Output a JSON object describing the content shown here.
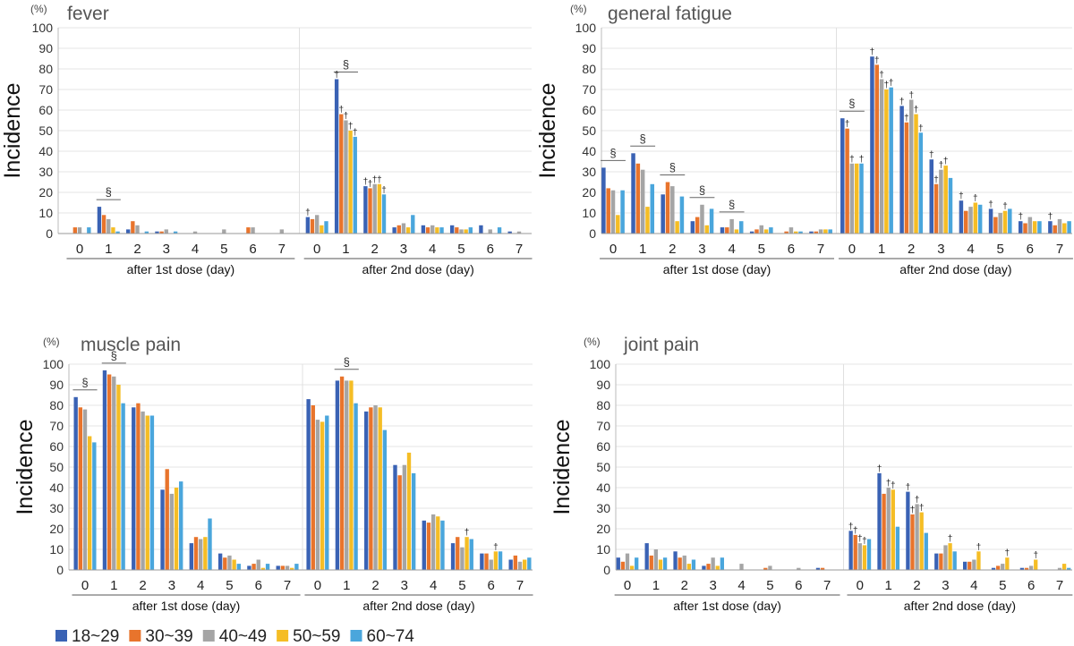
{
  "chart_data": [
    {
      "type": "bar",
      "title": "fever",
      "ylabel": "Incidence",
      "yunit": "(%)",
      "ylim": [
        0,
        100
      ],
      "ytick_step": 10,
      "grid": true,
      "groups": [
        {
          "label": "after 1st dose (day)",
          "days": [
            "0",
            "1",
            "2",
            "3",
            "4",
            "5",
            "6",
            "7"
          ]
        },
        {
          "label": "after 2nd dose (day)",
          "days": [
            "0",
            "1",
            "2",
            "3",
            "4",
            "5",
            "6",
            "7"
          ]
        }
      ],
      "series": [
        {
          "name": "18~29",
          "values": [
            0,
            13,
            2,
            1,
            0,
            0,
            0,
            0,
            8,
            75,
            23,
            3,
            4,
            4,
            4,
            1
          ]
        },
        {
          "name": "30~39",
          "values": [
            3,
            9,
            6,
            1,
            0,
            0,
            3,
            0,
            7,
            58,
            22,
            4,
            3,
            3,
            0,
            0
          ]
        },
        {
          "name": "40~49",
          "values": [
            3,
            7,
            4,
            2,
            1,
            2,
            3,
            2,
            9,
            55,
            24,
            5,
            4,
            2,
            2,
            1
          ]
        },
        {
          "name": "50~59",
          "values": [
            0,
            3,
            0,
            0,
            0,
            0,
            0,
            0,
            4,
            50,
            24,
            3,
            3,
            2,
            0,
            0
          ]
        },
        {
          "name": "60~74",
          "values": [
            3,
            1,
            1,
            1,
            0,
            0,
            0,
            0,
            6,
            47,
            19,
            9,
            3,
            3,
            3,
            0
          ]
        }
      ],
      "annotations": [
        {
          "symbol": "§",
          "day_index": 1
        },
        {
          "symbol": "§",
          "day_index": 9
        },
        {
          "symbol": "†",
          "day_index": 8,
          "series_index": 0
        },
        {
          "symbol": "†",
          "day_index": 9,
          "series_index": 0
        },
        {
          "symbol": "†",
          "day_index": 9,
          "series_index": 1
        },
        {
          "symbol": "†",
          "day_index": 9,
          "series_index": 2
        },
        {
          "symbol": "†",
          "day_index": 9,
          "series_index": 3
        },
        {
          "symbol": "†",
          "day_index": 9,
          "series_index": 4
        },
        {
          "symbol": "†",
          "day_index": 10,
          "series_index": 0
        },
        {
          "symbol": "†",
          "day_index": 10,
          "series_index": 1
        },
        {
          "symbol": "†",
          "day_index": 10,
          "series_index": 2
        },
        {
          "symbol": "†",
          "day_index": 10,
          "series_index": 3
        },
        {
          "symbol": "†",
          "day_index": 10,
          "series_index": 4
        }
      ]
    },
    {
      "type": "bar",
      "title": "general fatigue",
      "ylabel": "Incidence",
      "yunit": "(%)",
      "ylim": [
        0,
        100
      ],
      "ytick_step": 10,
      "grid": true,
      "groups": [
        {
          "label": "after 1st dose (day)",
          "days": [
            "0",
            "1",
            "2",
            "3",
            "4",
            "5",
            "6",
            "7"
          ]
        },
        {
          "label": "after 2nd dose (day)",
          "days": [
            "0",
            "1",
            "2",
            "3",
            "4",
            "5",
            "6",
            "7"
          ]
        }
      ],
      "series": [
        {
          "name": "18~29",
          "values": [
            32,
            39,
            19,
            6,
            3,
            1,
            0,
            1,
            56,
            86,
            62,
            36,
            16,
            12,
            6,
            6
          ]
        },
        {
          "name": "30~39",
          "values": [
            22,
            34,
            25,
            8,
            3,
            2,
            1,
            1,
            51,
            82,
            54,
            24,
            11,
            8,
            5,
            4
          ]
        },
        {
          "name": "40~49",
          "values": [
            21,
            31,
            23,
            14,
            7,
            4,
            3,
            2,
            34,
            75,
            65,
            31,
            13,
            10,
            8,
            7
          ]
        },
        {
          "name": "50~59",
          "values": [
            9,
            13,
            6,
            4,
            2,
            2,
            1,
            2,
            34,
            70,
            58,
            33,
            15,
            11,
            6,
            5
          ]
        },
        {
          "name": "60~74",
          "values": [
            21,
            24,
            18,
            12,
            6,
            3,
            1,
            2,
            34,
            71,
            49,
            27,
            14,
            12,
            6,
            6
          ]
        }
      ],
      "annotations": [
        {
          "symbol": "§",
          "day_index": 0
        },
        {
          "symbol": "§",
          "day_index": 1
        },
        {
          "symbol": "§",
          "day_index": 2
        },
        {
          "symbol": "§",
          "day_index": 3
        },
        {
          "symbol": "§",
          "day_index": 4
        },
        {
          "symbol": "§",
          "day_index": 8
        },
        {
          "symbol": "†",
          "day_index": 8,
          "series_index": 1
        },
        {
          "symbol": "†",
          "day_index": 8,
          "series_index": 2
        },
        {
          "symbol": "†",
          "day_index": 8,
          "series_index": 4
        },
        {
          "symbol": "†",
          "day_index": 9,
          "series_index": 0
        },
        {
          "symbol": "†",
          "day_index": 9,
          "series_index": 1
        },
        {
          "symbol": "†",
          "day_index": 9,
          "series_index": 2
        },
        {
          "symbol": "†",
          "day_index": 9,
          "series_index": 3
        },
        {
          "symbol": "†",
          "day_index": 9,
          "series_index": 4
        },
        {
          "symbol": "†",
          "day_index": 10,
          "series_index": 0
        },
        {
          "symbol": "†",
          "day_index": 10,
          "series_index": 1
        },
        {
          "symbol": "†",
          "day_index": 10,
          "series_index": 2
        },
        {
          "symbol": "†",
          "day_index": 10,
          "series_index": 3
        },
        {
          "symbol": "†",
          "day_index": 10,
          "series_index": 4
        },
        {
          "symbol": "†",
          "day_index": 11,
          "series_index": 0
        },
        {
          "symbol": "†",
          "day_index": 11,
          "series_index": 1
        },
        {
          "symbol": "†",
          "day_index": 11,
          "series_index": 2
        },
        {
          "symbol": "†",
          "day_index": 11,
          "series_index": 3
        },
        {
          "symbol": "†",
          "day_index": 12,
          "series_index": 0
        },
        {
          "symbol": "†",
          "day_index": 12,
          "series_index": 3
        },
        {
          "symbol": "†",
          "day_index": 13,
          "series_index": 0
        },
        {
          "symbol": "†",
          "day_index": 13,
          "series_index": 3
        },
        {
          "symbol": "†",
          "day_index": 14,
          "series_index": 0
        },
        {
          "symbol": "†",
          "day_index": 15,
          "series_index": 0
        }
      ]
    },
    {
      "type": "bar",
      "title": "muscle pain",
      "ylabel": "Incidence",
      "yunit": "(%)",
      "ylim": [
        0,
        100
      ],
      "ytick_step": 10,
      "grid": true,
      "groups": [
        {
          "label": "after 1st dose (day)",
          "days": [
            "0",
            "1",
            "2",
            "3",
            "4",
            "5",
            "6",
            "7"
          ]
        },
        {
          "label": "after 2nd dose (day)",
          "days": [
            "0",
            "1",
            "2",
            "3",
            "4",
            "5",
            "6",
            "7"
          ]
        }
      ],
      "series": [
        {
          "name": "18~29",
          "values": [
            84,
            97,
            79,
            39,
            13,
            8,
            2,
            2,
            83,
            92,
            77,
            51,
            24,
            13,
            8,
            5
          ]
        },
        {
          "name": "30~39",
          "values": [
            79,
            95,
            81,
            49,
            16,
            6,
            3,
            2,
            80,
            94,
            79,
            46,
            23,
            16,
            8,
            7
          ]
        },
        {
          "name": "40~49",
          "values": [
            78,
            94,
            77,
            37,
            15,
            7,
            5,
            2,
            73,
            92,
            80,
            51,
            27,
            11,
            5,
            4
          ]
        },
        {
          "name": "50~59",
          "values": [
            65,
            90,
            75,
            40,
            16,
            5,
            1,
            1,
            72,
            92,
            79,
            57,
            26,
            16,
            9,
            5
          ]
        },
        {
          "name": "60~74",
          "values": [
            62,
            81,
            75,
            43,
            25,
            3,
            3,
            3,
            75,
            81,
            68,
            47,
            24,
            15,
            9,
            6
          ]
        }
      ],
      "annotations": [
        {
          "symbol": "§",
          "day_index": 0
        },
        {
          "symbol": "§",
          "day_index": 1
        },
        {
          "symbol": "§",
          "day_index": 9
        },
        {
          "symbol": "†",
          "day_index": 13,
          "series_index": 3
        },
        {
          "symbol": "†",
          "day_index": 14,
          "series_index": 3
        }
      ]
    },
    {
      "type": "bar",
      "title": "joint pain",
      "ylabel": "Incidence",
      "yunit": "(%)",
      "ylim": [
        0,
        100
      ],
      "ytick_step": 10,
      "grid": true,
      "groups": [
        {
          "label": "after 1st dose (day)",
          "days": [
            "0",
            "1",
            "2",
            "3",
            "4",
            "5",
            "6",
            "7"
          ]
        },
        {
          "label": "after 2nd dose (day)",
          "days": [
            "0",
            "1",
            "2",
            "3",
            "4",
            "5",
            "6",
            "7"
          ]
        }
      ],
      "series": [
        {
          "name": "18~29",
          "values": [
            6,
            13,
            9,
            2,
            0,
            0,
            0,
            1,
            19,
            47,
            38,
            8,
            4,
            1,
            1,
            0
          ]
        },
        {
          "name": "30~39",
          "values": [
            4,
            7,
            6,
            3,
            0,
            1,
            0,
            1,
            17,
            37,
            27,
            8,
            4,
            2,
            1,
            0
          ]
        },
        {
          "name": "40~49",
          "values": [
            8,
            10,
            7,
            6,
            3,
            2,
            1,
            0,
            13,
            40,
            32,
            12,
            5,
            3,
            2,
            1
          ]
        },
        {
          "name": "50~59",
          "values": [
            2,
            5,
            3,
            2,
            0,
            0,
            0,
            0,
            12,
            39,
            28,
            13,
            9,
            6,
            5,
            3
          ]
        },
        {
          "name": "60~74",
          "values": [
            6,
            6,
            5,
            6,
            0,
            0,
            0,
            0,
            15,
            21,
            18,
            9,
            0,
            0,
            0,
            1
          ]
        }
      ],
      "annotations": [
        {
          "symbol": "†",
          "day_index": 8,
          "series_index": 0
        },
        {
          "symbol": "†",
          "day_index": 8,
          "series_index": 1
        },
        {
          "symbol": "†",
          "day_index": 8,
          "series_index": 2
        },
        {
          "symbol": "†",
          "day_index": 8,
          "series_index": 3
        },
        {
          "symbol": "†",
          "day_index": 9,
          "series_index": 0
        },
        {
          "symbol": "†",
          "day_index": 9,
          "series_index": 2
        },
        {
          "symbol": "†",
          "day_index": 9,
          "series_index": 3
        },
        {
          "symbol": "†",
          "day_index": 10,
          "series_index": 0
        },
        {
          "symbol": "†",
          "day_index": 10,
          "series_index": 1
        },
        {
          "symbol": "†",
          "day_index": 10,
          "series_index": 2
        },
        {
          "symbol": "†",
          "day_index": 10,
          "series_index": 3
        },
        {
          "symbol": "†",
          "day_index": 11,
          "series_index": 3
        },
        {
          "symbol": "†",
          "day_index": 12,
          "series_index": 3
        },
        {
          "symbol": "†",
          "day_index": 13,
          "series_index": 3
        },
        {
          "symbol": "†",
          "day_index": 14,
          "series_index": 3
        }
      ]
    }
  ],
  "legend": {
    "items": [
      {
        "label": "18~29",
        "color": "#3a62b4"
      },
      {
        "label": "30~39",
        "color": "#e8742c"
      },
      {
        "label": "40~49",
        "color": "#a5a5a5"
      },
      {
        "label": "50~59",
        "color": "#f5bd25"
      },
      {
        "label": "60~74",
        "color": "#4aa6dc"
      }
    ]
  },
  "colors": [
    "#3a62b4",
    "#e8742c",
    "#a5a5a5",
    "#f5bd25",
    "#4aa6dc"
  ]
}
